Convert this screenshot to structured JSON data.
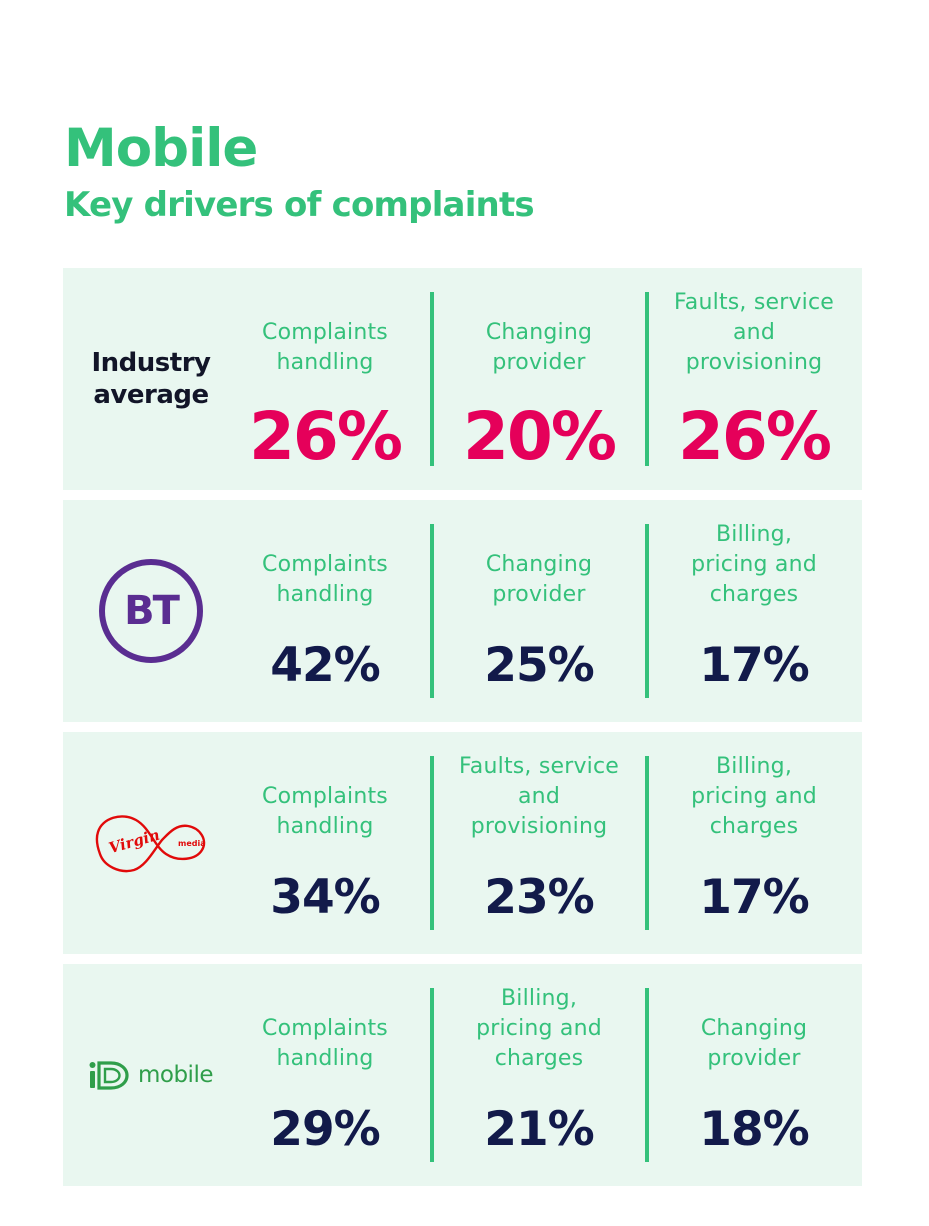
{
  "header": {
    "title": "Mobile",
    "subtitle": "Key drivers of complaints"
  },
  "colors": {
    "accent_green": "#34c17b",
    "industry_value": "#e5005a",
    "value_navy": "#121a4a",
    "row_background": "#e9f7f0",
    "bt_purple": "#5a2d91",
    "virgin_red": "#e10a0a",
    "id_green": "#2f9e4a"
  },
  "rows": [
    {
      "provider": "Industry average",
      "provider_logo": "",
      "drivers": [
        {
          "label": "Complaints handling",
          "value": "26%"
        },
        {
          "label": "Changing provider",
          "value": "20%"
        },
        {
          "label": "Faults, service and provisioning",
          "value": "26%"
        }
      ]
    },
    {
      "provider": "BT",
      "provider_logo": "bt-logo",
      "drivers": [
        {
          "label": "Complaints handling",
          "value": "42%"
        },
        {
          "label": "Changing provider",
          "value": "25%"
        },
        {
          "label": "Billing, pricing and charges",
          "value": "17%"
        }
      ]
    },
    {
      "provider": "Virgin media",
      "provider_logo": "virgin-media-logo",
      "drivers": [
        {
          "label": "Complaints handling",
          "value": "34%"
        },
        {
          "label": "Faults, service and provisioning",
          "value": "23%"
        },
        {
          "label": "Billing, pricing and charges",
          "value": "17%"
        }
      ]
    },
    {
      "provider": "iD mobile",
      "provider_logo": "id-mobile-logo",
      "drivers": [
        {
          "label": "Complaints handling",
          "value": "29%"
        },
        {
          "label": "Billing, pricing and charges",
          "value": "21%"
        },
        {
          "label": "Changing provider",
          "value": "18%"
        }
      ]
    }
  ]
}
